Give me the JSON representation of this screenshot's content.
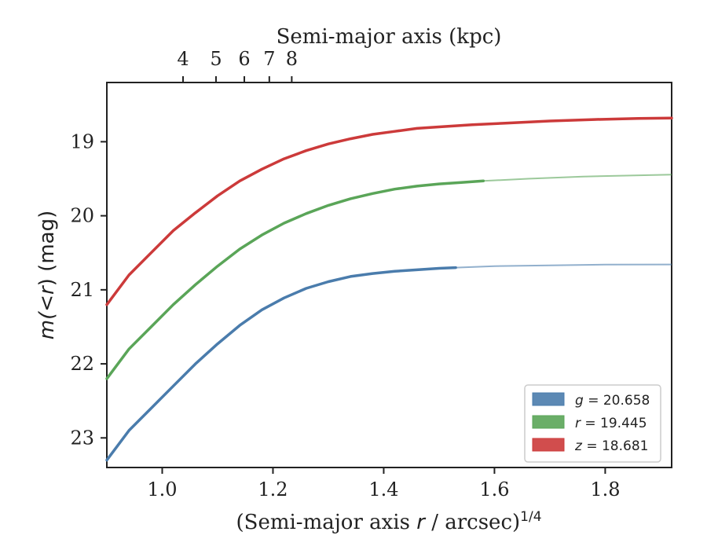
{
  "chart_data": {
    "type": "line",
    "xlabel_prefix": "(Semi-major axis ",
    "xlabel_var": "r",
    "xlabel_suffix": " / arcsec)",
    "xlabel_exp": "1/4",
    "top_xlabel": "Semi-major axis (kpc)",
    "ylabel_prefix": "m(",
    "ylabel_lt": "<",
    "ylabel_var": "r",
    "ylabel_suffix": ") (mag)",
    "xlim": [
      0.9,
      1.92
    ],
    "ylim": [
      23.4,
      18.2
    ],
    "y_inverted": true,
    "x_ticks": [
      "1.0",
      "1.2",
      "1.4",
      "1.6",
      "1.8"
    ],
    "y_ticks": [
      "19",
      "20",
      "21",
      "22",
      "23"
    ],
    "top_x_ticks": [
      "4",
      "5",
      "6",
      "7",
      "8"
    ],
    "grid": false,
    "legend_position": "lower-right",
    "series": [
      {
        "name": "g = 20.658",
        "legend_var": "g",
        "legend_val": "= 20.658",
        "color": "#4a7cac",
        "solid_until": 1.53,
        "x": [
          0.9,
          0.94,
          0.98,
          1.02,
          1.06,
          1.1,
          1.14,
          1.18,
          1.22,
          1.26,
          1.3,
          1.34,
          1.38,
          1.42,
          1.46,
          1.5,
          1.53,
          1.6,
          1.7,
          1.8,
          1.92
        ],
        "y": [
          23.3,
          22.9,
          22.6,
          22.3,
          22.0,
          21.73,
          21.48,
          21.27,
          21.11,
          20.98,
          20.89,
          20.82,
          20.78,
          20.75,
          20.73,
          20.71,
          20.7,
          20.68,
          20.67,
          20.66,
          20.658
        ]
      },
      {
        "name": "r = 19.445",
        "legend_var": "r",
        "legend_val": "= 19.445",
        "color": "#5aa558",
        "solid_until": 1.58,
        "x": [
          0.9,
          0.94,
          0.98,
          1.02,
          1.06,
          1.1,
          1.14,
          1.18,
          1.22,
          1.26,
          1.3,
          1.34,
          1.38,
          1.42,
          1.46,
          1.5,
          1.54,
          1.58,
          1.66,
          1.76,
          1.92
        ],
        "y": [
          22.2,
          21.8,
          21.5,
          21.2,
          20.93,
          20.68,
          20.45,
          20.26,
          20.1,
          19.97,
          19.86,
          19.77,
          19.7,
          19.64,
          19.6,
          19.57,
          19.55,
          19.53,
          19.5,
          19.47,
          19.445
        ]
      },
      {
        "name": "z = 18.681",
        "legend_var": "z",
        "legend_val": "= 18.681",
        "color": "#cc3a3a",
        "solid_until": 1.92,
        "x": [
          0.9,
          0.94,
          0.98,
          1.02,
          1.06,
          1.1,
          1.14,
          1.18,
          1.22,
          1.26,
          1.3,
          1.34,
          1.38,
          1.42,
          1.46,
          1.5,
          1.56,
          1.62,
          1.7,
          1.78,
          1.86,
          1.92
        ],
        "y": [
          21.2,
          20.8,
          20.5,
          20.2,
          19.96,
          19.73,
          19.53,
          19.37,
          19.23,
          19.12,
          19.03,
          18.96,
          18.9,
          18.86,
          18.82,
          18.8,
          18.77,
          18.75,
          18.72,
          18.7,
          18.685,
          18.681
        ]
      }
    ]
  }
}
